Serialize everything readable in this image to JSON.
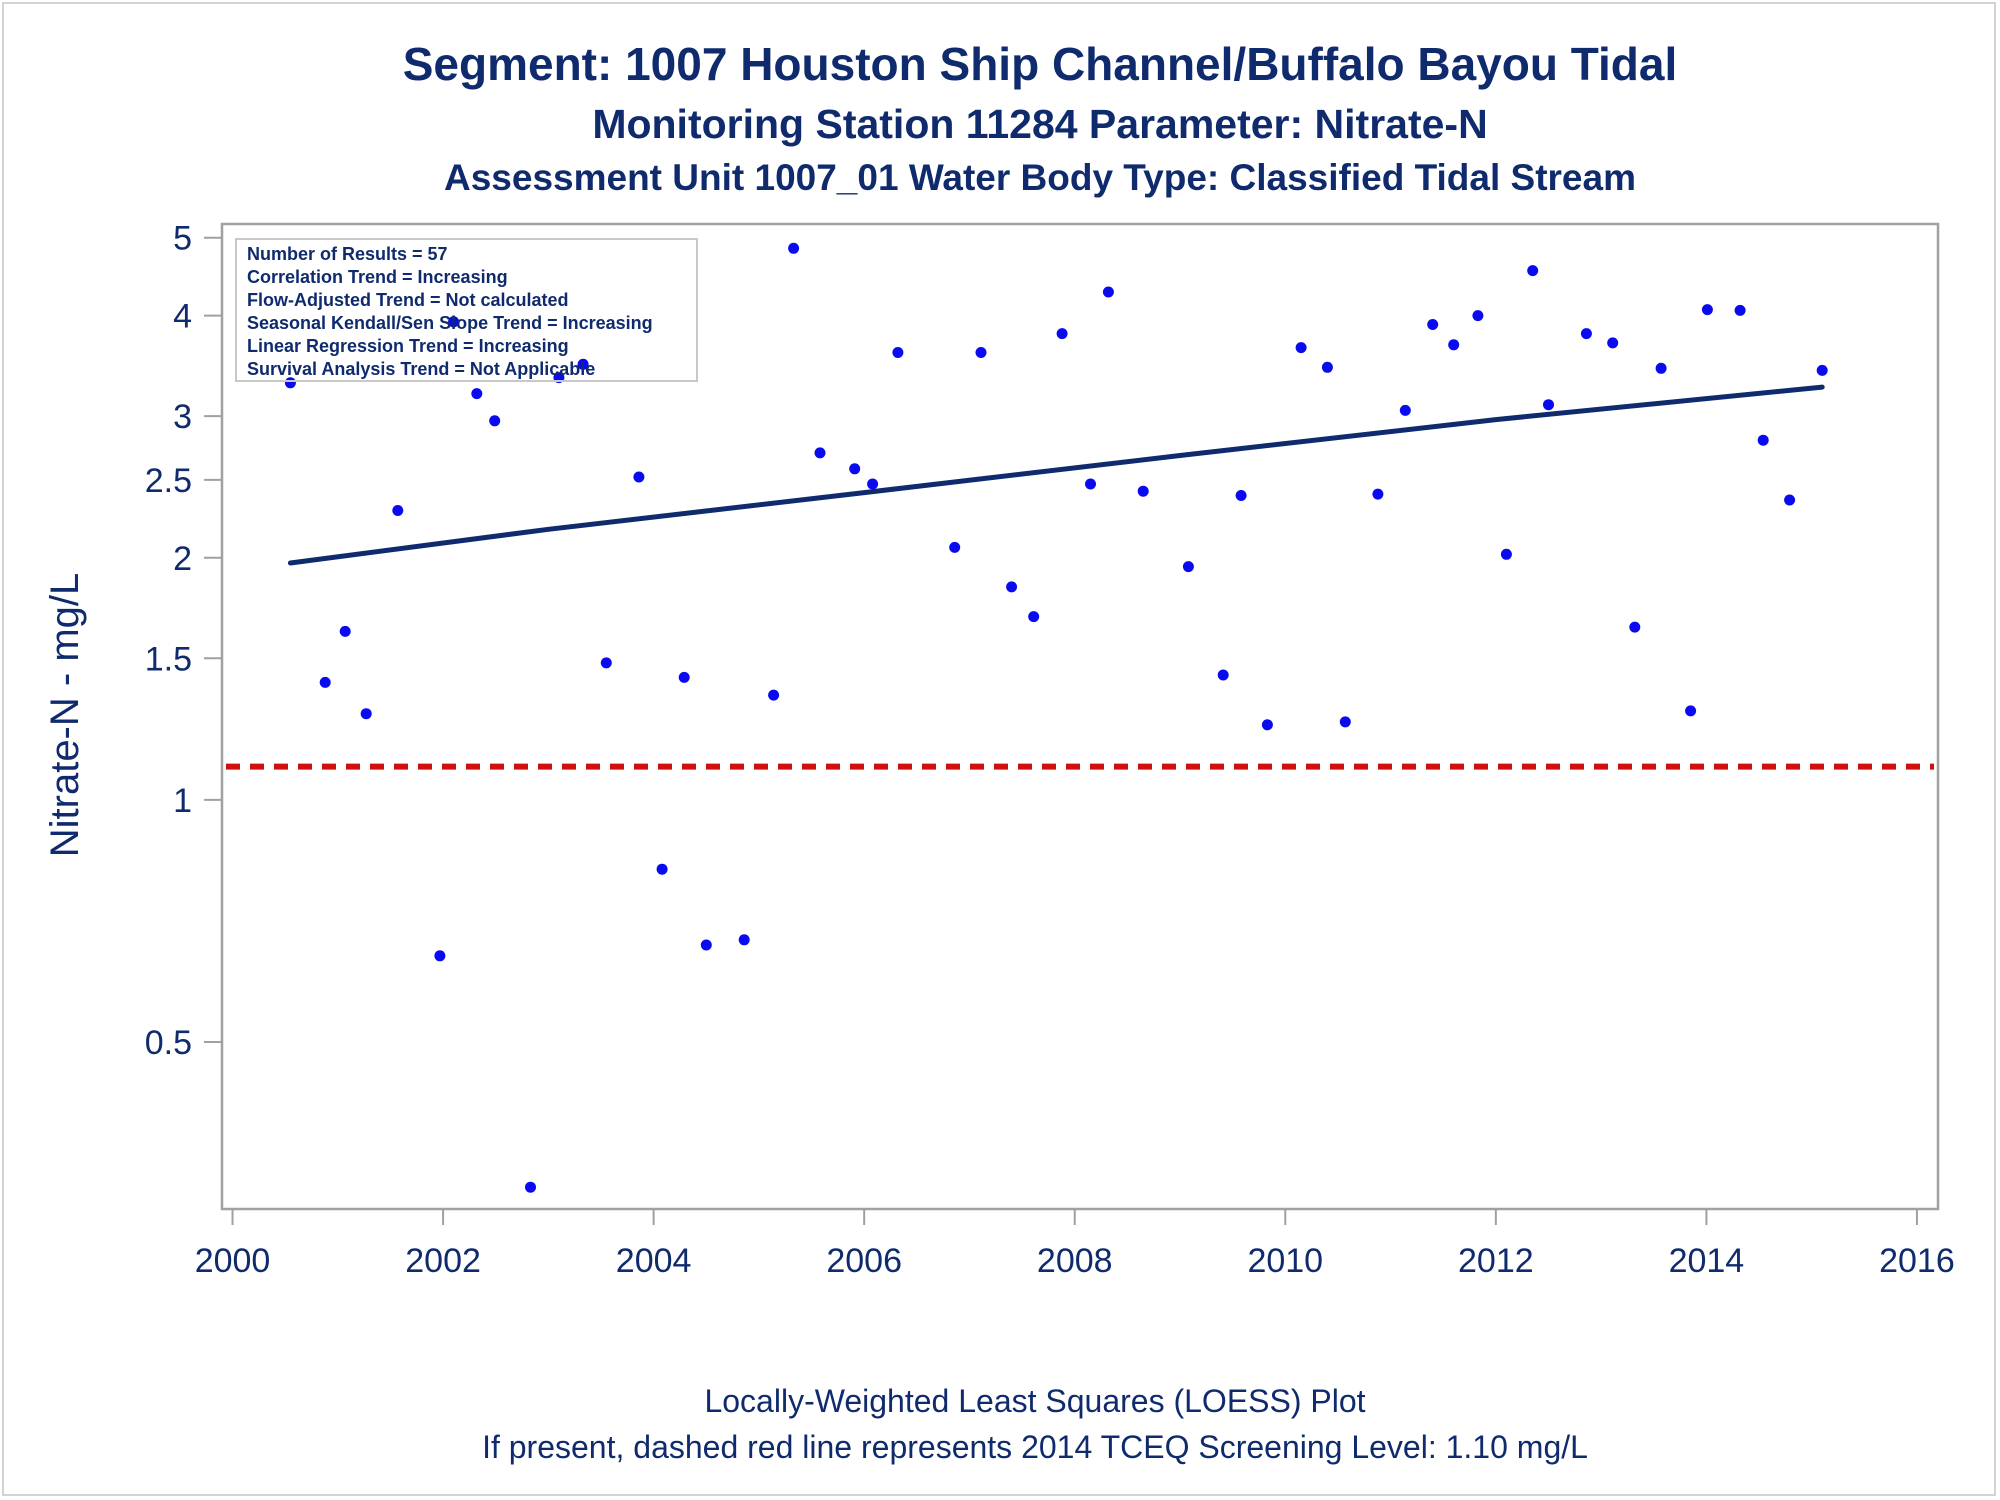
{
  "titles": {
    "line1": "Segment: 1007  Houston Ship Channel/Buffalo Bayou Tidal",
    "line2": "Monitoring Station 11284 Parameter: Nitrate-N",
    "line3": "Assessment Unit 1007_01   Water Body Type: Classified Tidal Stream"
  },
  "inset": {
    "lines": [
      "Number of Results = 57",
      "Correlation Trend = Increasing",
      "Flow-Adjusted Trend = Not calculated",
      "Seasonal Kendall/Sen Slope Trend = Increasing",
      "Linear Regression Trend = Increasing",
      "Survival Analysis Trend = Not Applicable"
    ]
  },
  "footnotes": {
    "line1": "Locally-Weighted Least Squares (LOESS) Plot",
    "line2": "If present, dashed red line represents 2014 TCEQ Screening Level: 1.10 mg/L"
  },
  "colors": {
    "text": "#0f2b6e",
    "points": "#0a0af0",
    "trend_line": "#0f2b6e",
    "screening_line": "#d01010",
    "frame": "#a0a0a0"
  },
  "chart_data": {
    "type": "scatter",
    "ylabel": "Nitrate-N - mg/L",
    "xlabel": "",
    "y_scale": "log",
    "xlim": [
      1999.9,
      2016.2
    ],
    "ylim": [
      0.31,
      5.2
    ],
    "x_ticks": [
      2000,
      2002,
      2004,
      2006,
      2008,
      2010,
      2012,
      2014,
      2016
    ],
    "y_ticks": [
      0.5,
      1,
      1.5,
      2,
      2.5,
      3,
      4,
      5
    ],
    "screening_level": 1.1,
    "trend_line": {
      "x": [
        2000.55,
        2003,
        2006,
        2009,
        2012,
        2015.1
      ],
      "y": [
        1.97,
        2.17,
        2.41,
        2.68,
        2.97,
        3.26
      ]
    },
    "points": {
      "x": [
        2000.55,
        2000.88,
        2001.07,
        2001.27,
        2001.57,
        2001.97,
        2002.1,
        2002.32,
        2002.49,
        2002.83,
        2003.1,
        2003.33,
        2003.55,
        2003.86,
        2004.08,
        2004.29,
        2004.5,
        2004.86,
        2005.14,
        2005.33,
        2005.58,
        2005.91,
        2006.08,
        2006.32,
        2006.86,
        2007.11,
        2007.4,
        2007.61,
        2007.88,
        2008.15,
        2008.32,
        2008.65,
        2009.08,
        2009.41,
        2009.58,
        2009.83,
        2010.15,
        2010.4,
        2010.57,
        2010.88,
        2011.14,
        2011.4,
        2011.6,
        2011.83,
        2012.1,
        2012.35,
        2012.5,
        2012.86,
        2013.11,
        2013.32,
        2013.57,
        2013.85,
        2014.01,
        2014.32,
        2014.54,
        2014.79,
        2015.1
      ],
      "y": [
        3.3,
        1.4,
        1.62,
        1.28,
        2.29,
        0.64,
        3.93,
        3.2,
        2.96,
        0.33,
        3.35,
        3.48,
        1.48,
        2.52,
        0.82,
        1.42,
        0.66,
        0.67,
        1.35,
        4.85,
        2.7,
        2.58,
        2.47,
        3.6,
        2.06,
        3.6,
        1.84,
        1.69,
        3.8,
        2.47,
        4.28,
        2.42,
        1.95,
        1.43,
        2.39,
        1.24,
        3.65,
        3.45,
        1.25,
        2.4,
        3.05,
        3.9,
        3.68,
        4.0,
        2.02,
        4.55,
        3.1,
        3.8,
        3.7,
        1.64,
        3.44,
        1.29,
        4.07,
        4.06,
        2.8,
        2.36,
        3.42
      ]
    }
  }
}
